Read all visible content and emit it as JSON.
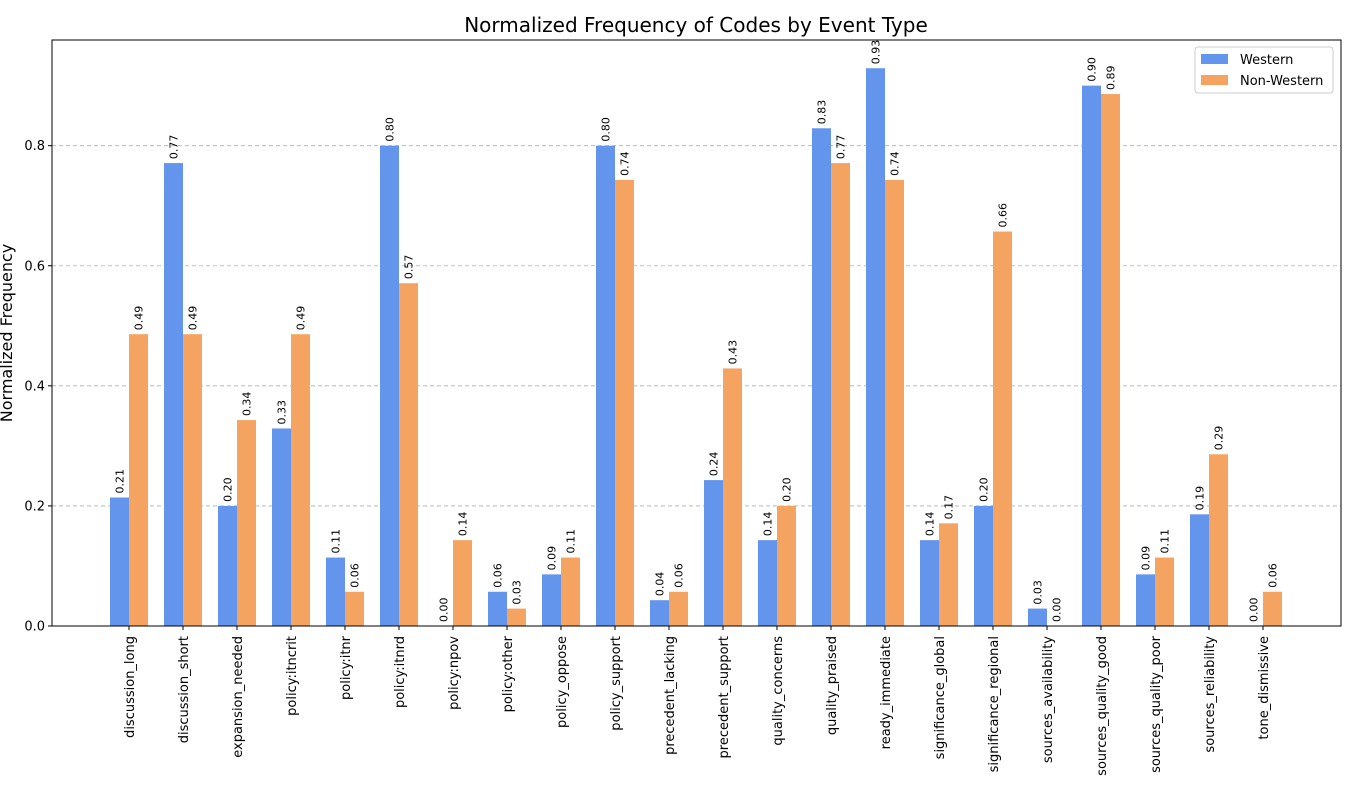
{
  "chart_data": {
    "type": "bar",
    "title": "Normalized Frequency of Codes by Event Type",
    "xlabel": "",
    "ylabel": "Normalized Frequency",
    "ylim": [
      0,
      0.976
    ],
    "yticks": [
      0.0,
      0.2,
      0.4,
      0.6,
      0.8
    ],
    "ytick_labels": [
      "0.0",
      "0.2",
      "0.4",
      "0.6",
      "0.8"
    ],
    "grid": "y dashed",
    "legend_position": "top-right",
    "categories": [
      "discussion_long",
      "discussion_short",
      "expansion_needed",
      "policy:itncrit",
      "policy:itnr",
      "policy:itnrd",
      "policy:npov",
      "policy:other",
      "policy_oppose",
      "policy_support",
      "precedent_lacking",
      "precedent_support",
      "quality_concerns",
      "quality_praised",
      "ready_immediate",
      "significance_global",
      "significance_regional",
      "sources_availability",
      "sources_quality_good",
      "sources_quality_poor",
      "sources_reliability",
      "tone_dismissive"
    ],
    "series": [
      {
        "name": "Western",
        "color": "#6495ED",
        "values": [
          0.214,
          0.771,
          0.2,
          0.329,
          0.114,
          0.8,
          0.0,
          0.057,
          0.086,
          0.8,
          0.043,
          0.243,
          0.143,
          0.829,
          0.929,
          0.143,
          0.2,
          0.029,
          0.9,
          0.086,
          0.186,
          0.0
        ],
        "labels": [
          "0.21",
          "0.77",
          "0.20",
          "0.33",
          "0.11",
          "0.80",
          "0.00",
          "0.06",
          "0.09",
          "0.80",
          "0.04",
          "0.24",
          "0.14",
          "0.83",
          "0.93",
          "0.14",
          "0.20",
          "0.03",
          "0.90",
          "0.09",
          "0.19",
          "0.00"
        ]
      },
      {
        "name": "Non-Western",
        "color": "#F4A460",
        "values": [
          0.486,
          0.486,
          0.343,
          0.486,
          0.057,
          0.571,
          0.143,
          0.029,
          0.114,
          0.743,
          0.057,
          0.429,
          0.2,
          0.771,
          0.743,
          0.171,
          0.657,
          0.0,
          0.886,
          0.114,
          0.286,
          0.057
        ],
        "labels": [
          "0.49",
          "0.49",
          "0.34",
          "0.49",
          "0.06",
          "0.57",
          "0.14",
          "0.03",
          "0.11",
          "0.74",
          "0.06",
          "0.43",
          "0.20",
          "0.77",
          "0.74",
          "0.17",
          "0.66",
          "0.00",
          "0.89",
          "0.11",
          "0.29",
          "0.06"
        ]
      }
    ]
  }
}
